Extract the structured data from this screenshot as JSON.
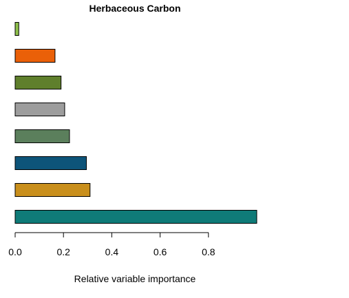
{
  "chart_data": {
    "type": "bar",
    "orientation": "horizontal",
    "title": "Herbaceous Carbon",
    "xlabel": "Relative variable importance",
    "ylabel": "",
    "xlim": [
      0,
      1.0
    ],
    "x_ticks": [
      0.0,
      0.2,
      0.4,
      0.6,
      0.8
    ],
    "x_tick_labels": [
      "0.0",
      "0.2",
      "0.4",
      "0.6",
      "0.8"
    ],
    "grid": false,
    "legend": "none",
    "values": [
      1.0,
      0.31,
      0.295,
      0.225,
      0.205,
      0.19,
      0.165,
      0.015
    ],
    "colors": [
      "#0f7b78",
      "#c98f1c",
      "#0d5479",
      "#5b7f5c",
      "#9d9d9d",
      "#5f7f2c",
      "#ea6008",
      "#8fc04b"
    ]
  }
}
